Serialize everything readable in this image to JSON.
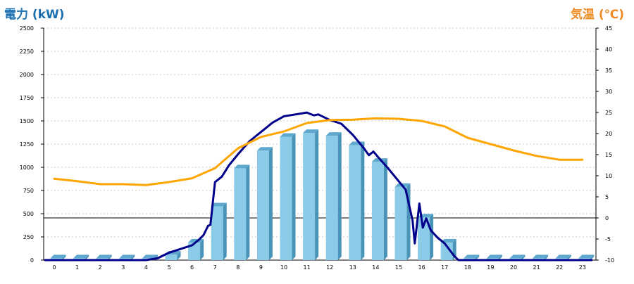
{
  "chart_data": {
    "type": "bar",
    "title": "",
    "left_axis": {
      "label": "電力 (kW)",
      "ylim": [
        0,
        2500
      ],
      "ticks": [
        0,
        250,
        500,
        750,
        1000,
        1250,
        1500,
        1750,
        2000,
        2250,
        2500
      ]
    },
    "right_axis": {
      "label": "気温 (℃)",
      "ylim": [
        -10,
        45
      ],
      "ticks": [
        -10,
        -5,
        0,
        5,
        10,
        15,
        20,
        25,
        30,
        35,
        40,
        45
      ]
    },
    "categories": [
      "0",
      "1",
      "2",
      "3",
      "4",
      "5",
      "6",
      "7",
      "8",
      "9",
      "10",
      "11",
      "12",
      "13",
      "14",
      "15",
      "16",
      "17",
      "18",
      "19",
      "20",
      "21",
      "22",
      "23"
    ],
    "grid": true,
    "series": [
      {
        "kind": "bar",
        "axis": "left",
        "color": "#8ccbe8",
        "values": [
          20,
          20,
          20,
          20,
          20,
          60,
          190,
          580,
          990,
          1180,
          1330,
          1370,
          1340,
          1240,
          1060,
          790,
          460,
          190,
          20,
          20,
          20,
          20,
          20,
          20
        ]
      },
      {
        "kind": "line",
        "axis": "left",
        "color": "#00008b",
        "points": [
          [
            -0.4,
            0
          ],
          [
            0,
            0
          ],
          [
            1,
            0
          ],
          [
            2,
            0
          ],
          [
            3,
            0
          ],
          [
            4,
            0
          ],
          [
            4.5,
            20
          ],
          [
            5,
            80
          ],
          [
            5.5,
            120
          ],
          [
            6,
            160
          ],
          [
            6.3,
            220
          ],
          [
            6.5,
            270
          ],
          [
            6.7,
            370
          ],
          [
            6.8,
            380
          ],
          [
            7,
            840
          ],
          [
            7.3,
            900
          ],
          [
            7.6,
            1020
          ],
          [
            8,
            1140
          ],
          [
            8.5,
            1280
          ],
          [
            9,
            1380
          ],
          [
            9.5,
            1480
          ],
          [
            10,
            1550
          ],
          [
            10.5,
            1570
          ],
          [
            11,
            1590
          ],
          [
            11.3,
            1560
          ],
          [
            11.5,
            1570
          ],
          [
            12,
            1510
          ],
          [
            12.5,
            1470
          ],
          [
            13,
            1350
          ],
          [
            13.5,
            1200
          ],
          [
            13.7,
            1130
          ],
          [
            13.9,
            1170
          ],
          [
            14.1,
            1110
          ],
          [
            14.5,
            1000
          ],
          [
            15,
            850
          ],
          [
            15.3,
            760
          ],
          [
            15.6,
            430
          ],
          [
            15.7,
            180
          ],
          [
            15.9,
            610
          ],
          [
            16.05,
            350
          ],
          [
            16.2,
            450
          ],
          [
            16.4,
            320
          ],
          [
            16.7,
            240
          ],
          [
            17,
            180
          ],
          [
            17.4,
            50
          ],
          [
            17.6,
            0
          ],
          [
            18,
            0
          ],
          [
            19,
            0
          ],
          [
            20,
            0
          ],
          [
            21,
            0
          ],
          [
            22,
            0
          ],
          [
            23,
            0
          ],
          [
            23.4,
            0
          ]
        ]
      },
      {
        "kind": "line",
        "axis": "right",
        "color": "#ffa500",
        "points": [
          [
            0,
            9.3
          ],
          [
            1,
            8.7
          ],
          [
            2,
            8.0
          ],
          [
            3,
            8.0
          ],
          [
            4,
            7.8
          ],
          [
            5,
            8.5
          ],
          [
            6,
            9.4
          ],
          [
            7,
            11.8
          ],
          [
            8,
            16.5
          ],
          [
            9,
            19.2
          ],
          [
            10,
            20.5
          ],
          [
            11,
            22.5
          ],
          [
            12,
            23.2
          ],
          [
            13,
            23.3
          ],
          [
            14,
            23.6
          ],
          [
            15,
            23.5
          ],
          [
            16,
            23.0
          ],
          [
            17,
            21.7
          ],
          [
            18,
            19.0
          ],
          [
            19,
            17.5
          ],
          [
            20,
            16.0
          ],
          [
            21,
            14.7
          ],
          [
            22,
            13.8
          ],
          [
            23,
            13.8
          ]
        ]
      }
    ]
  }
}
